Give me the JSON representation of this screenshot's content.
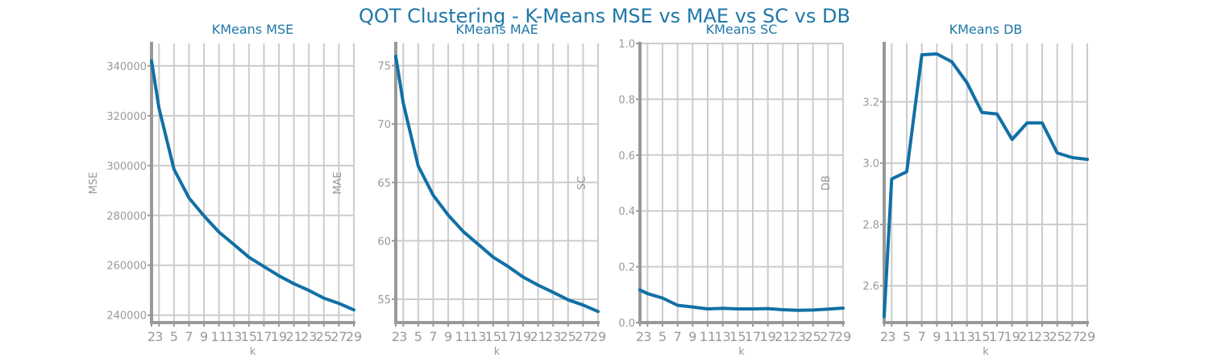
{
  "title": "QOT Clustering - K-Means MSE vs MAE vs SC vs DB",
  "colors": {
    "line": "#1170a5",
    "title": "#1f77a8",
    "grid": "#cccccc",
    "axis": "#999999"
  },
  "chart_data": [
    {
      "type": "line",
      "title": "KMeans MSE",
      "xlabel": "k",
      "ylabel": "MSE",
      "x": [
        2,
        3,
        5,
        7,
        9,
        11,
        13,
        15,
        17,
        19,
        21,
        23,
        25,
        27,
        29
      ],
      "series": [
        {
          "values": [
            342000,
            323000,
            298500,
            287000,
            279800,
            273300,
            268300,
            263200,
            259500,
            255800,
            252600,
            249900,
            246800,
            244700,
            242100
          ]
        }
      ],
      "xticks": [
        2,
        3,
        5,
        7,
        9,
        11,
        13,
        15,
        17,
        19,
        21,
        23,
        25,
        27,
        29
      ],
      "yticks": [
        240000,
        260000,
        280000,
        300000,
        320000,
        340000
      ],
      "xlim": [
        2,
        29
      ],
      "ylim": [
        237000,
        349000
      ],
      "grid": true
    },
    {
      "type": "line",
      "title": "KMeans MAE",
      "xlabel": "k",
      "ylabel": "MAE",
      "x": [
        2,
        3,
        5,
        7,
        9,
        11,
        13,
        15,
        17,
        19,
        21,
        23,
        25,
        27,
        29
      ],
      "series": [
        {
          "values": [
            75.8,
            71.8,
            66.4,
            63.9,
            62.2,
            60.8,
            59.7,
            58.6,
            57.8,
            56.9,
            56.2,
            55.6,
            54.95,
            54.5,
            53.95
          ]
        }
      ],
      "xticks": [
        2,
        3,
        5,
        7,
        9,
        11,
        13,
        15,
        17,
        19,
        21,
        23,
        25,
        27,
        29
      ],
      "yticks": [
        55,
        60,
        65,
        70,
        75
      ],
      "xlim": [
        2,
        29
      ],
      "ylim": [
        53.0,
        76.9
      ],
      "grid": true
    },
    {
      "type": "line",
      "title": "KMeans SC",
      "xlabel": "k",
      "ylabel": "SC",
      "x": [
        2,
        3,
        5,
        7,
        9,
        11,
        13,
        15,
        17,
        19,
        21,
        23,
        25,
        27,
        29
      ],
      "series": [
        {
          "values": [
            0.117,
            0.104,
            0.088,
            0.062,
            0.056,
            0.049,
            0.051,
            0.049,
            0.049,
            0.05,
            0.046,
            0.044,
            0.045,
            0.048,
            0.052
          ]
        }
      ],
      "xticks": [
        2,
        3,
        5,
        7,
        9,
        11,
        13,
        15,
        17,
        19,
        21,
        23,
        25,
        27,
        29
      ],
      "yticks": [
        0.0,
        0.2,
        0.4,
        0.6,
        0.8,
        1.0
      ],
      "ytick_labels": [
        "0.0",
        "0.2",
        "0.4",
        "0.6",
        "0.8",
        "1.0"
      ],
      "xlim": [
        2,
        29
      ],
      "ylim": [
        0.0,
        1.0
      ],
      "grid": true
    },
    {
      "type": "line",
      "title": "KMeans DB",
      "xlabel": "k",
      "ylabel": "DB",
      "x": [
        2,
        3,
        5,
        7,
        9,
        11,
        13,
        15,
        17,
        19,
        21,
        23,
        25,
        27,
        29
      ],
      "series": [
        {
          "values": [
            2.5,
            2.948,
            2.972,
            3.353,
            3.356,
            3.33,
            3.262,
            3.165,
            3.16,
            3.077,
            3.131,
            3.131,
            3.033,
            3.018,
            3.012
          ]
        }
      ],
      "xticks": [
        2,
        3,
        5,
        7,
        9,
        11,
        13,
        15,
        17,
        19,
        21,
        23,
        25,
        27,
        29
      ],
      "yticks": [
        2.6,
        2.8,
        3.0,
        3.2
      ],
      "ytick_labels": [
        "2.6",
        "2.8",
        "3.0",
        "3.2"
      ],
      "xlim": [
        2,
        29
      ],
      "ylim": [
        2.48,
        3.39
      ],
      "grid": true
    }
  ]
}
